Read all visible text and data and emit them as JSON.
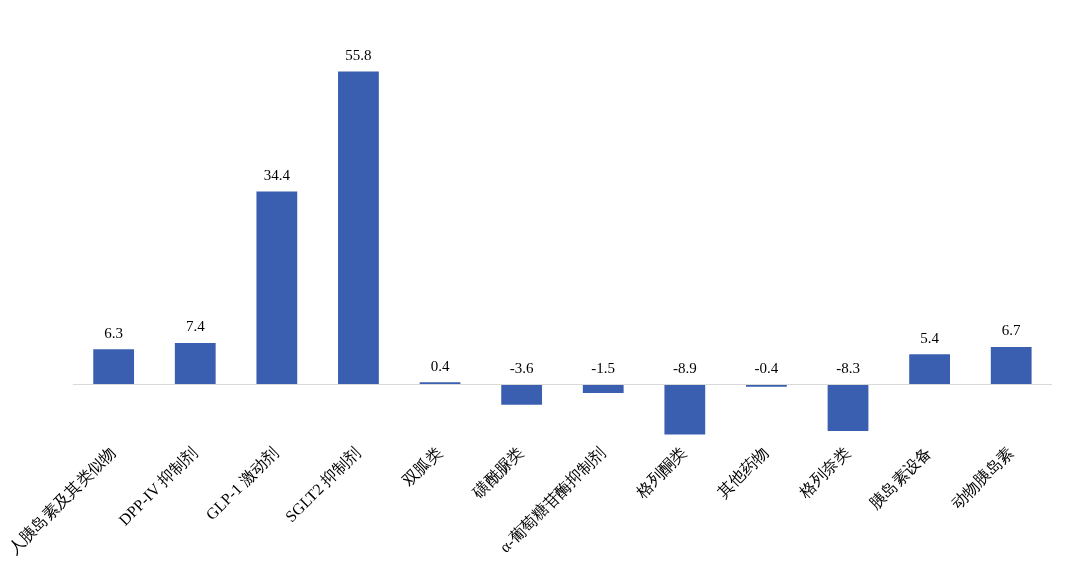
{
  "chart_data": {
    "type": "bar",
    "categories": [
      "人胰岛素及其类似物",
      "DPP-IV 抑制剂",
      "GLP-1 激动剂",
      "SGLT2 抑制剂",
      "双胍类",
      "磺酰脲类",
      "α-葡萄糖苷酶抑制剂",
      "格列酮类",
      "其他药物",
      "格列奈类",
      "胰岛素设备",
      "动物胰岛素"
    ],
    "values": [
      6.3,
      7.4,
      34.4,
      55.8,
      0.4,
      -3.6,
      -1.5,
      -8.9,
      -0.4,
      -8.3,
      5.4,
      6.7
    ],
    "color": "#3a5fb0",
    "data_labels": true,
    "grid": false,
    "legend": false
  }
}
